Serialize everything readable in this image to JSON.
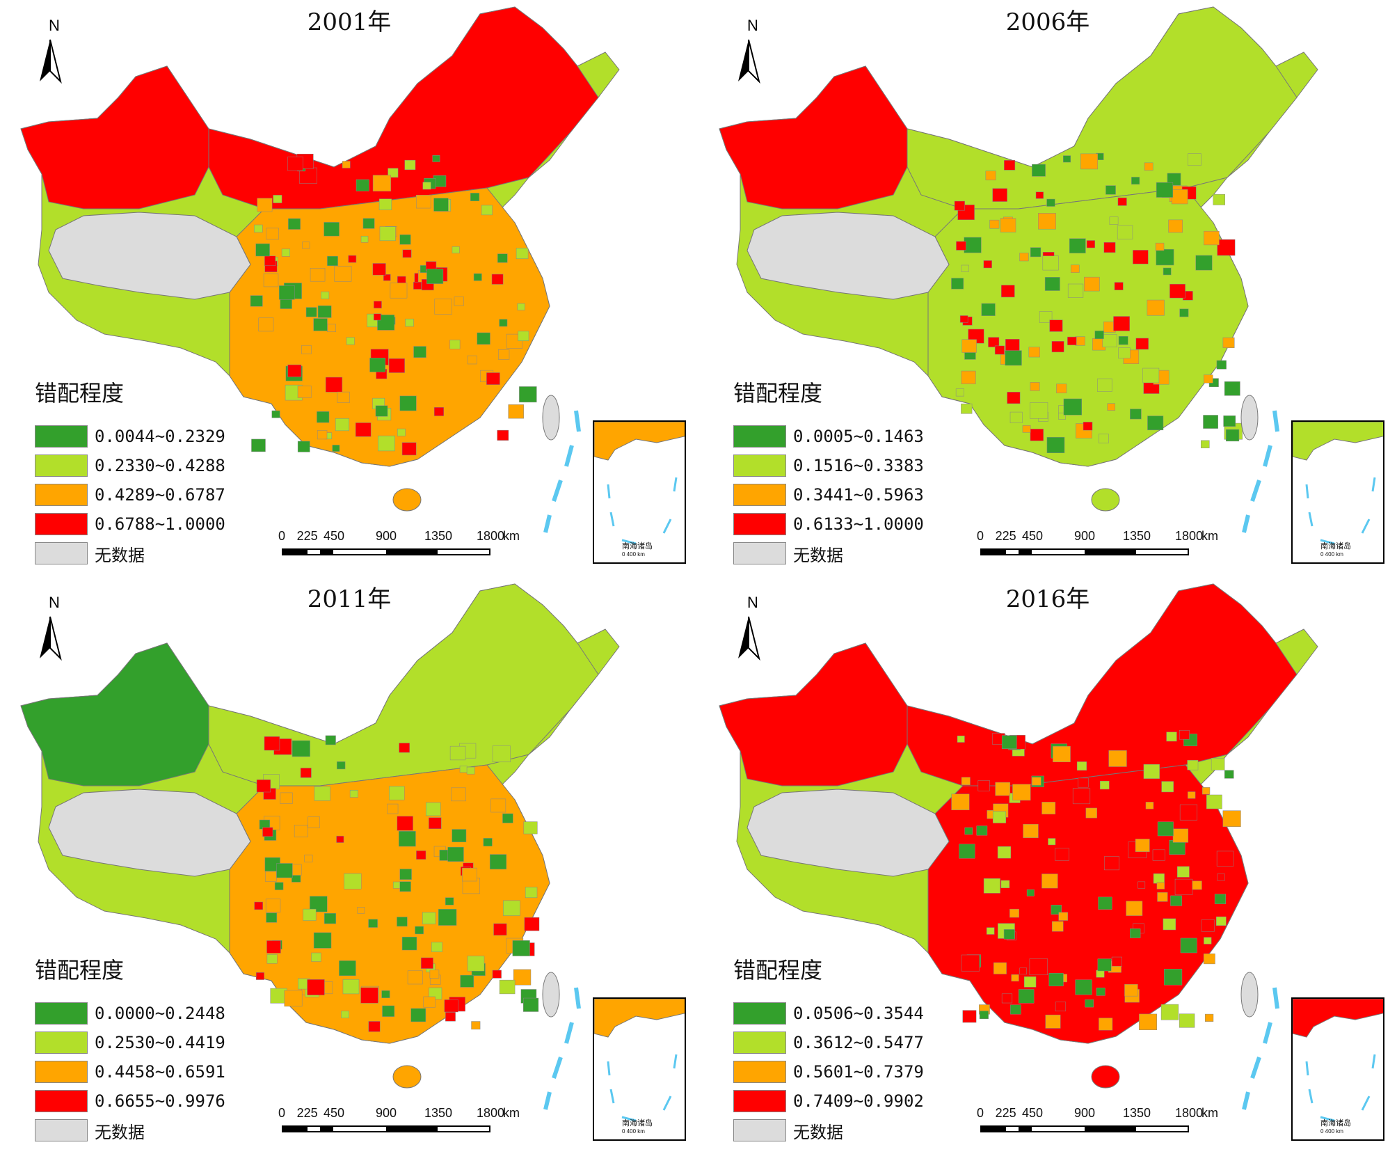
{
  "map_data": {
    "legend_title": "错配程度",
    "no_data_label": "无数据",
    "north_label": "N",
    "scale_bar": {
      "ticks": [
        "0",
        "225",
        "450",
        "900",
        "1350",
        "1800"
      ],
      "unit": "km"
    },
    "inset": {
      "label": "南海诸岛",
      "scale_text": "0    400 km"
    },
    "colors": {
      "class1": "#33a02c",
      "class2": "#b2df2a",
      "class3": "#ffa500",
      "class4": "#ff0000",
      "no_data": "#dcdcdc",
      "sea_line": "#5bc8f0"
    },
    "panels": [
      {
        "title": "2001年",
        "classes": [
          "0.0044~0.2329",
          "0.2330~0.4288",
          "0.4289~0.6787",
          "0.6788~1.0000"
        ]
      },
      {
        "title": "2006年",
        "classes": [
          "0.0005~0.1463",
          "0.1516~0.3383",
          "0.3441~0.5963",
          "0.6133~1.0000"
        ]
      },
      {
        "title": "2011年",
        "classes": [
          "0.0000~0.2448",
          "0.2530~0.4419",
          "0.4458~0.6591",
          "0.6655~0.9976"
        ]
      },
      {
        "title": "2016年",
        "classes": [
          "0.0506~0.3544",
          "0.3612~0.5477",
          "0.5601~0.7379",
          "0.7409~0.9902"
        ]
      }
    ]
  }
}
